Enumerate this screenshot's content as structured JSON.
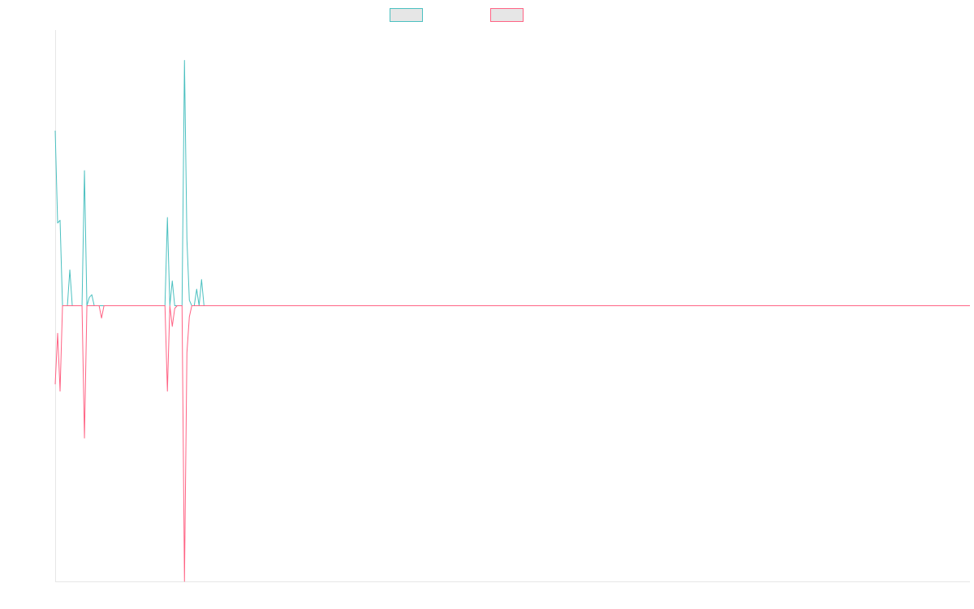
{
  "chart_data": {
    "type": "line",
    "title": "",
    "xlabel": "",
    "ylabel": "",
    "grid": false,
    "legend_position": "top-center",
    "x_range": [
      0,
      375
    ],
    "ylim": [
      -100,
      100
    ],
    "series": [
      {
        "color": "#4bc0c0",
        "fill": "#e6e6e6",
        "points": [
          [
            0,
            63.5
          ],
          [
            1,
            30
          ],
          [
            2,
            31
          ],
          [
            3,
            0
          ],
          [
            4,
            0
          ],
          [
            5,
            0
          ],
          [
            6,
            13
          ],
          [
            7,
            0
          ],
          [
            8,
            0
          ],
          [
            9,
            0
          ],
          [
            10,
            0
          ],
          [
            11,
            0
          ],
          [
            12,
            49
          ],
          [
            13,
            0
          ],
          [
            14,
            3
          ],
          [
            15,
            4
          ],
          [
            16,
            0
          ],
          [
            17,
            0
          ],
          [
            18,
            0
          ],
          [
            19,
            0
          ],
          [
            45,
            0
          ],
          [
            46,
            32
          ],
          [
            47,
            0
          ],
          [
            48,
            9
          ],
          [
            49,
            0
          ],
          [
            50,
            0
          ],
          [
            51,
            0
          ],
          [
            52,
            0
          ],
          [
            53,
            89
          ],
          [
            54,
            24
          ],
          [
            55,
            2
          ],
          [
            56,
            0
          ],
          [
            57,
            0
          ],
          [
            58,
            6
          ],
          [
            59,
            0
          ],
          [
            60,
            9.5
          ],
          [
            61,
            0
          ],
          [
            375,
            0
          ]
        ]
      },
      {
        "color": "#ff6384",
        "fill": "#e6e6e6",
        "points": [
          [
            0,
            -28.5
          ],
          [
            1,
            -10
          ],
          [
            2,
            -31
          ],
          [
            3,
            0
          ],
          [
            4,
            0
          ],
          [
            5,
            0
          ],
          [
            6,
            0
          ],
          [
            7,
            0
          ],
          [
            8,
            0
          ],
          [
            9,
            0
          ],
          [
            10,
            0
          ],
          [
            11,
            0
          ],
          [
            12,
            -48
          ],
          [
            13,
            0
          ],
          [
            14,
            0
          ],
          [
            15,
            0
          ],
          [
            16,
            0
          ],
          [
            17,
            0
          ],
          [
            18,
            0
          ],
          [
            19,
            -4.5
          ],
          [
            20,
            0
          ],
          [
            45,
            0
          ],
          [
            46,
            -31
          ],
          [
            47,
            0
          ],
          [
            48,
            -7.5
          ],
          [
            49,
            -1
          ],
          [
            50,
            0
          ],
          [
            51,
            0
          ],
          [
            52,
            0
          ],
          [
            53,
            -100
          ],
          [
            54,
            -17
          ],
          [
            55,
            -4
          ],
          [
            56,
            0
          ],
          [
            57,
            0
          ],
          [
            58,
            0
          ],
          [
            59,
            0
          ],
          [
            375,
            0
          ]
        ]
      }
    ]
  }
}
